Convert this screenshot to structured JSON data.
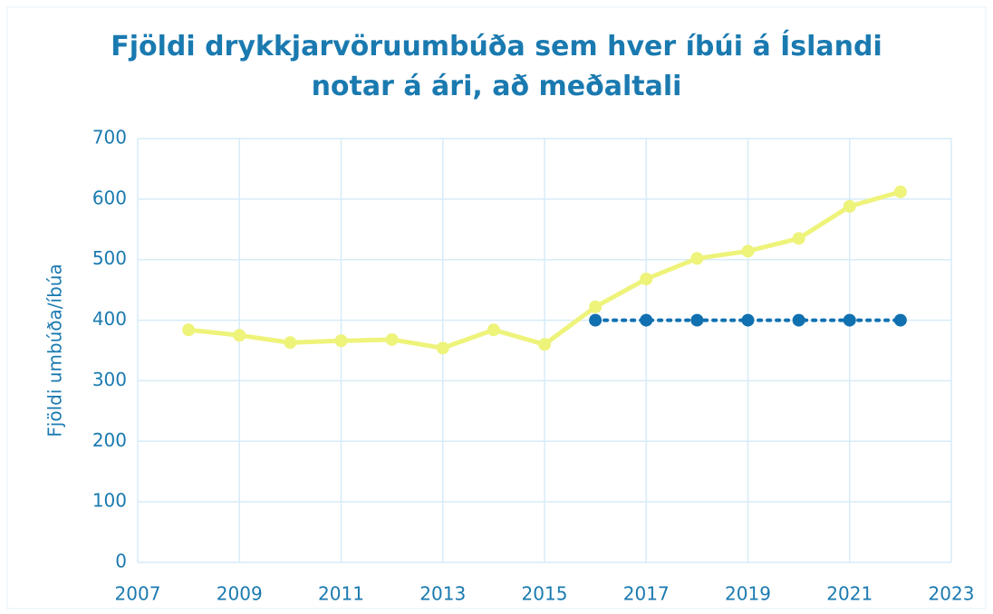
{
  "chart_data": {
    "type": "line",
    "title": "Fjöldi drykkjarvöruumbúða sem hver íbúi á Íslandi notar á ári, að meðaltali",
    "ylabel": "Fjöldi umbúða/íbúa",
    "series": [
      {
        "color": "#eef37a",
        "line_style": "solid",
        "x": [
          2008,
          2009,
          2010,
          2011,
          2012,
          2013,
          2014,
          2015,
          2016,
          2017,
          2018,
          2019,
          2020,
          2021,
          2022
        ],
        "values": [
          384,
          375,
          363,
          366,
          368,
          354,
          384,
          360,
          422,
          468,
          502,
          514,
          535,
          588,
          612
        ]
      },
      {
        "color": "#1070b0",
        "line_style": "dotted",
        "x": [
          2016,
          2017,
          2018,
          2019,
          2020,
          2021,
          2022
        ],
        "values": [
          400,
          400,
          400,
          400,
          400,
          400,
          400
        ]
      }
    ],
    "xlim": [
      2007,
      2023
    ],
    "xticks": [
      2007,
      2009,
      2011,
      2013,
      2015,
      2017,
      2019,
      2021,
      2023
    ],
    "ylim": [
      0,
      700
    ],
    "yticks": [
      0,
      100,
      200,
      300,
      400,
      500,
      600,
      700
    ],
    "grid": true
  }
}
